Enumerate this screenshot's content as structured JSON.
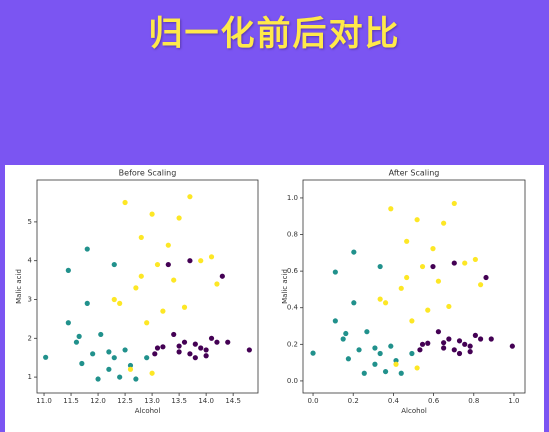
{
  "title": "归一化前后对比",
  "chart_data": [
    {
      "type": "scatter",
      "title": "Before Scaling",
      "x_label": "Alcohol",
      "y_label": "Malic acid",
      "xlim": [
        10.87,
        14.96
      ],
      "ylim": [
        0.59,
        6.08
      ],
      "xticks": [
        {
          "value": 11,
          "label": "11.0"
        },
        11.5,
        {
          "value": 12,
          "label": "12.0"
        },
        12.5,
        {
          "value": 13,
          "label": "13.0"
        },
        13.5,
        {
          "value": 14,
          "label": "14.0"
        },
        14.5
      ],
      "yticks": [
        1,
        2,
        3,
        4,
        5
      ],
      "series": [
        {
          "color": "#440154",
          "x": [
            13.2,
            13.5,
            13.7,
            14.0,
            14.2,
            13.8,
            14.4,
            13.05,
            13.6,
            13.9,
            14.1,
            14.8,
            13.3,
            13.7,
            14.3,
            13.5,
            13.1,
            14.0,
            13.4,
            13.8
          ],
          "values": [
            1.78,
            1.8,
            1.6,
            1.7,
            1.9,
            1.5,
            1.9,
            1.6,
            1.9,
            1.75,
            2.0,
            1.7,
            3.9,
            4.0,
            3.6,
            1.65,
            1.75,
            1.55,
            2.1,
            1.85
          ]
        },
        {
          "color": "#21918c",
          "x": [
            11.03,
            11.45,
            11.45,
            11.6,
            11.7,
            11.8,
            11.8,
            11.9,
            12.0,
            12.05,
            12.2,
            12.3,
            12.3,
            12.4,
            12.5,
            12.2,
            12.6,
            12.7,
            12.9,
            11.65
          ],
          "values": [
            1.51,
            3.75,
            2.4,
            1.9,
            1.35,
            4.3,
            2.9,
            1.6,
            0.95,
            2.1,
            1.2,
            3.9,
            1.5,
            1.0,
            1.7,
            1.65,
            1.3,
            0.95,
            1.5,
            2.05
          ]
        },
        {
          "color": "#fde725",
          "x": [
            12.3,
            12.5,
            12.7,
            12.8,
            12.9,
            13.0,
            13.1,
            13.2,
            13.3,
            13.4,
            13.5,
            13.6,
            13.7,
            13.9,
            14.1,
            14.2,
            12.6,
            13.0,
            12.4,
            12.8
          ],
          "values": [
            3.0,
            5.5,
            3.3,
            4.6,
            2.4,
            5.2,
            3.9,
            2.7,
            4.4,
            3.5,
            5.1,
            2.8,
            5.65,
            4.0,
            4.1,
            3.4,
            1.2,
            1.1,
            2.9,
            3.6
          ]
        }
      ]
    },
    {
      "type": "scatter",
      "title": "After Scaling",
      "x_label": "Alcohol",
      "y_label": "Malic acid",
      "xlim": [
        -0.05,
        1.055
      ],
      "ylim": [
        -0.066,
        1.098
      ],
      "xticks": [
        {
          "value": 0,
          "label": "0.0"
        },
        0.2,
        0.4,
        0.6,
        0.8,
        {
          "value": 1,
          "label": "1.0"
        }
      ],
      "yticks": [
        {
          "value": 0,
          "label": "0.0"
        },
        0.2,
        0.4,
        0.6,
        0.8,
        {
          "value": 1,
          "label": "1.0"
        }
      ],
      "series": [
        {
          "color": "#440154",
          "x": [
            0.571,
            0.65,
            0.703,
            0.782,
            0.834,
            0.729,
            0.887,
            0.532,
            0.676,
            0.755,
            0.808,
            0.992,
            0.597,
            0.703,
            0.861,
            0.65,
            0.545,
            0.782,
            0.624,
            0.729
          ],
          "values": [
            0.206,
            0.209,
            0.17,
            0.19,
            0.229,
            0.15,
            0.229,
            0.17,
            0.229,
            0.2,
            0.249,
            0.19,
            0.625,
            0.644,
            0.565,
            0.18,
            0.2,
            0.16,
            0.269,
            0.219
          ]
        },
        {
          "color": "#21918c",
          "x": [
            0,
            0.111,
            0.111,
            0.15,
            0.176,
            0.203,
            0.203,
            0.229,
            0.255,
            0.268,
            0.308,
            0.334,
            0.334,
            0.361,
            0.387,
            0.308,
            0.413,
            0.439,
            0.492,
            0.163
          ],
          "values": [
            0.152,
            0.595,
            0.328,
            0.229,
            0.121,
            0.704,
            0.427,
            0.17,
            0.042,
            0.269,
            0.091,
            0.625,
            0.15,
            0.051,
            0.19,
            0.18,
            0.111,
            0.042,
            0.15,
            0.259
          ]
        },
        {
          "color": "#fde725",
          "x": [
            0.334,
            0.387,
            0.439,
            0.466,
            0.492,
            0.518,
            0.545,
            0.571,
            0.597,
            0.624,
            0.65,
            0.676,
            0.703,
            0.755,
            0.808,
            0.834,
            0.413,
            0.518,
            0.361,
            0.466
          ],
          "values": [
            0.447,
            0.941,
            0.506,
            0.763,
            0.328,
            0.881,
            0.625,
            0.387,
            0.723,
            0.545,
            0.862,
            0.407,
            0.97,
            0.644,
            0.664,
            0.526,
            0.091,
            0.071,
            0.427,
            0.565
          ]
        }
      ]
    }
  ]
}
